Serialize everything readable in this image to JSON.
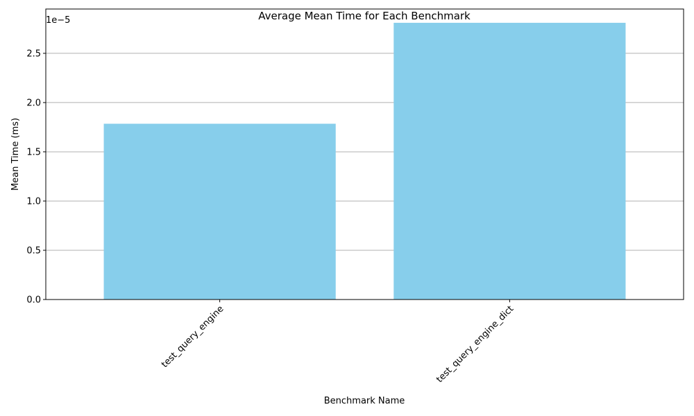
{
  "chart_data": {
    "type": "bar",
    "title": "Average Mean Time for Each Benchmark",
    "xlabel": "Benchmark Name",
    "ylabel": "Mean Time (ms)",
    "categories": [
      "test_query_engine",
      "test_query_engine_dict"
    ],
    "values": [
      1.785e-05,
      2.81e-05
    ],
    "ylim": [
      0,
      2.95e-05
    ],
    "y_ticks": [
      0,
      5e-06,
      1e-05,
      1.5e-05,
      2e-05,
      2.5e-05
    ],
    "y_tick_labels": [
      "0.0",
      "0.5",
      "1.0",
      "1.5",
      "2.0",
      "2.5"
    ],
    "y_offset_label": "1e−5",
    "x_tick_rotation": "45 degrees",
    "bar_color": "#87ceeb",
    "grid": "y-axis only",
    "grid_color": "#b0b0b0",
    "legend": "none"
  }
}
